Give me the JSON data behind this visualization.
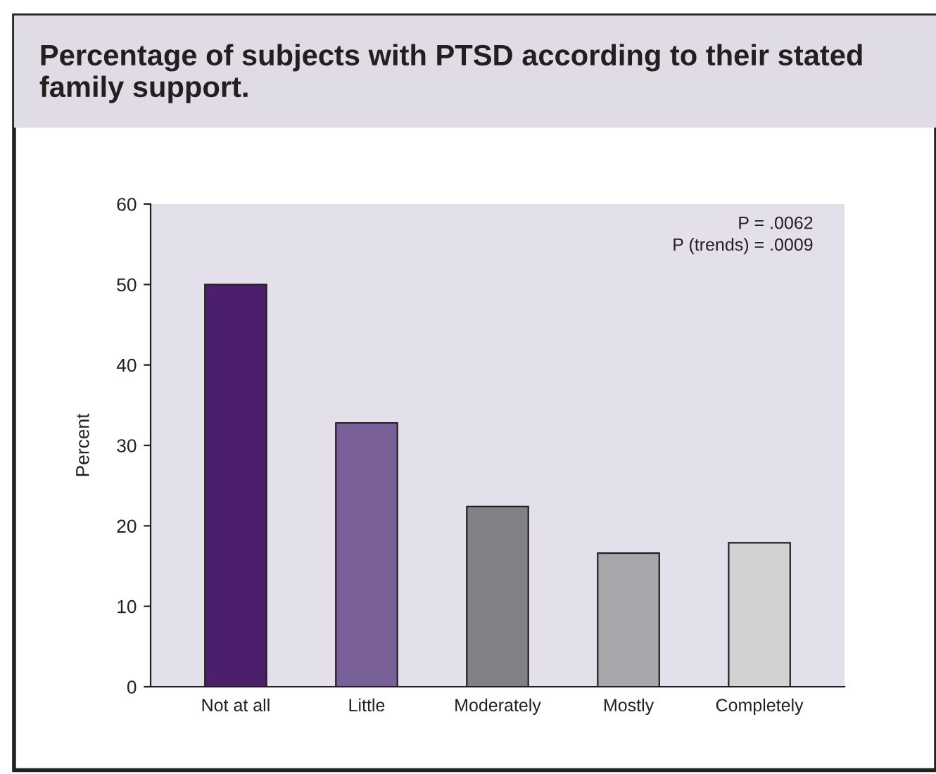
{
  "chart_data": {
    "type": "bar",
    "title": "Percentage of subjects with PTSD according to their stated family support.",
    "ylabel": "Percent",
    "categories": [
      "Not at all",
      "Little",
      "Moderately",
      "Mostly",
      "Completely"
    ],
    "values": [
      50,
      32.8,
      22.4,
      16.6,
      17.9
    ],
    "colors": [
      "#4b1f6b",
      "#7a6098",
      "#808184",
      "#a7a8ab",
      "#d1d2d4"
    ],
    "ylim": [
      0,
      60
    ],
    "yticks": [
      0,
      10,
      20,
      30,
      40,
      50,
      60
    ],
    "annotations": [
      "P = .0062",
      "P (trends) = .0009"
    ],
    "grid": false
  }
}
